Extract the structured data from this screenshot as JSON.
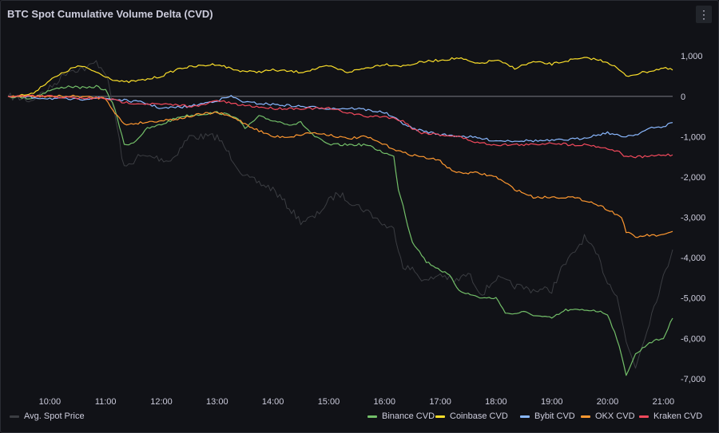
{
  "panel": {
    "title": "BTC Spot Cumulative Volume Delta (CVD)",
    "menu_icon": "kebab-menu-icon"
  },
  "chart_data": {
    "type": "line",
    "title": "BTC Spot Cumulative Volume Delta (CVD)",
    "x_ticks": [
      "10:00",
      "11:00",
      "12:00",
      "13:00",
      "14:00",
      "15:00",
      "16:00",
      "17:00",
      "18:00",
      "19:00",
      "20:00",
      "21:00"
    ],
    "xlim": [
      "09:15",
      "21:10"
    ],
    "y_ticks": [
      "1,000",
      "0",
      "-1,000",
      "-2,000",
      "-3,000",
      "-4,000",
      "-5,000",
      "-6,000",
      "-7,000"
    ],
    "ylim": [
      -7300,
      1400
    ],
    "zero_line": true,
    "legend_placement": "bottom",
    "series": [
      {
        "name": "Avg. Spot Price",
        "color": "#3b3d42",
        "axis": "none",
        "x": [
          "09:15",
          "09:40",
          "10:00",
          "10:20",
          "10:40",
          "10:50",
          "11:00",
          "11:10",
          "11:20",
          "11:35",
          "11:50",
          "12:10",
          "12:30",
          "12:50",
          "13:00",
          "13:15",
          "13:30",
          "14:00",
          "14:15",
          "14:30",
          "14:45",
          "15:00",
          "15:10",
          "15:30",
          "15:45",
          "16:00",
          "16:10",
          "16:20",
          "16:30",
          "16:45",
          "17:00",
          "17:15",
          "17:30",
          "17:45",
          "18:00",
          "18:20",
          "18:40",
          "19:00",
          "19:10",
          "19:20",
          "19:35",
          "19:50",
          "20:00",
          "20:10",
          "20:20",
          "20:30",
          "20:50",
          "21:00",
          "21:10"
        ],
        "y": [
          0,
          -100,
          200,
          650,
          700,
          850,
          600,
          -450,
          -1800,
          -1500,
          -1500,
          -1600,
          -1000,
          -1000,
          -1000,
          -1500,
          -2000,
          -2300,
          -2700,
          -3100,
          -3000,
          -2600,
          -2400,
          -2700,
          -2900,
          -3200,
          -3300,
          -4200,
          -4300,
          -4600,
          -4400,
          -4600,
          -4400,
          -4900,
          -4500,
          -4700,
          -4800,
          -4800,
          -4300,
          -4000,
          -3500,
          -4000,
          -4600,
          -4900,
          -6100,
          -6700,
          -5200,
          -4500,
          -3800
        ]
      },
      {
        "name": "Binance CVD",
        "color": "#73bf69",
        "x": [
          "09:15",
          "09:40",
          "10:00",
          "10:20",
          "10:40",
          "10:50",
          "11:00",
          "11:10",
          "11:20",
          "11:30",
          "11:45",
          "12:00",
          "12:20",
          "12:40",
          "13:00",
          "13:20",
          "13:30",
          "13:45",
          "14:00",
          "14:20",
          "14:30",
          "14:45",
          "15:00",
          "15:20",
          "15:40",
          "16:00",
          "16:10",
          "16:15",
          "16:20",
          "16:25",
          "16:30",
          "16:45",
          "17:00",
          "17:10",
          "17:20",
          "17:30",
          "17:45",
          "18:00",
          "18:10",
          "18:15",
          "18:30",
          "18:45",
          "19:00",
          "19:15",
          "19:30",
          "19:45",
          "20:00",
          "20:10",
          "20:20",
          "20:30",
          "20:45",
          "21:00",
          "21:10"
        ],
        "y": [
          0,
          -50,
          150,
          250,
          200,
          250,
          150,
          -300,
          -1200,
          -1150,
          -800,
          -700,
          -500,
          -450,
          -400,
          -500,
          -800,
          -500,
          -600,
          -700,
          -650,
          -1000,
          -1200,
          -1200,
          -1200,
          -1400,
          -1500,
          -2300,
          -2700,
          -3200,
          -3600,
          -4100,
          -4300,
          -4450,
          -4800,
          -4900,
          -5000,
          -5000,
          -5350,
          -5400,
          -5350,
          -5450,
          -5500,
          -5300,
          -5300,
          -5300,
          -5400,
          -6000,
          -6900,
          -6400,
          -6100,
          -6000,
          -5500
        ]
      },
      {
        "name": "Coinbase CVD",
        "color": "#fade2a",
        "x": [
          "09:15",
          "09:40",
          "10:00",
          "10:20",
          "10:30",
          "10:40",
          "10:50",
          "11:00",
          "11:10",
          "11:20",
          "11:40",
          "12:00",
          "12:20",
          "12:40",
          "13:00",
          "13:20",
          "13:40",
          "14:00",
          "14:30",
          "15:00",
          "15:20",
          "15:40",
          "16:00",
          "16:20",
          "16:40",
          "17:00",
          "17:20",
          "17:40",
          "18:00",
          "18:20",
          "18:40",
          "19:00",
          "19:20",
          "19:40",
          "20:00",
          "20:10",
          "20:20",
          "20:40",
          "21:00",
          "21:10"
        ],
        "y": [
          0,
          50,
          400,
          650,
          750,
          700,
          600,
          500,
          400,
          350,
          400,
          500,
          700,
          750,
          800,
          650,
          600,
          650,
          600,
          750,
          600,
          700,
          800,
          750,
          850,
          900,
          950,
          800,
          900,
          700,
          850,
          800,
          900,
          950,
          850,
          700,
          500,
          600,
          700,
          650
        ]
      },
      {
        "name": "Bybit CVD",
        "color": "#8ab8ff",
        "x": [
          "09:15",
          "10:00",
          "10:30",
          "10:45",
          "11:00",
          "11:20",
          "11:40",
          "12:00",
          "12:30",
          "13:00",
          "13:15",
          "13:30",
          "14:00",
          "14:30",
          "15:00",
          "15:30",
          "16:00",
          "16:15",
          "16:30",
          "17:00",
          "17:30",
          "18:00",
          "18:30",
          "19:00",
          "19:30",
          "20:00",
          "20:15",
          "20:30",
          "20:45",
          "21:00",
          "21:10"
        ],
        "y": [
          0,
          -50,
          -80,
          -40,
          -50,
          -100,
          -150,
          -300,
          -250,
          -100,
          0,
          -150,
          -200,
          -250,
          -300,
          -300,
          -400,
          -600,
          -800,
          -950,
          -1000,
          -1100,
          -1100,
          -1100,
          -1050,
          -900,
          -1000,
          -950,
          -800,
          -750,
          -650
        ]
      },
      {
        "name": "OKX CVD",
        "color": "#ff9830",
        "x": [
          "09:15",
          "10:00",
          "10:30",
          "11:00",
          "11:10",
          "11:20",
          "11:40",
          "12:00",
          "12:20",
          "12:40",
          "13:00",
          "13:20",
          "13:40",
          "14:00",
          "14:20",
          "14:40",
          "15:00",
          "15:20",
          "15:40",
          "16:00",
          "16:20",
          "16:40",
          "17:00",
          "17:10",
          "17:20",
          "17:40",
          "18:00",
          "18:20",
          "18:40",
          "19:00",
          "19:20",
          "19:40",
          "20:00",
          "20:15",
          "20:20",
          "20:30",
          "20:40",
          "21:00",
          "21:10"
        ],
        "y": [
          0,
          0,
          0,
          -50,
          -400,
          -700,
          -650,
          -600,
          -550,
          -450,
          -400,
          -550,
          -800,
          -1000,
          -1000,
          -900,
          -950,
          -1050,
          -1000,
          -1200,
          -1400,
          -1500,
          -1600,
          -1800,
          -1900,
          -1900,
          -2000,
          -2300,
          -2500,
          -2500,
          -2500,
          -2600,
          -2800,
          -3000,
          -3350,
          -3500,
          -3450,
          -3450,
          -3350
        ]
      },
      {
        "name": "Kraken CVD",
        "color": "#f2495c",
        "x": [
          "09:15",
          "10:00",
          "10:30",
          "11:00",
          "11:20",
          "11:40",
          "12:00",
          "12:20",
          "12:40",
          "13:00",
          "13:20",
          "13:40",
          "14:00",
          "14:20",
          "14:40",
          "15:00",
          "15:20",
          "15:40",
          "16:00",
          "16:20",
          "16:30",
          "16:40",
          "17:00",
          "17:20",
          "17:40",
          "18:00",
          "18:20",
          "18:40",
          "19:00",
          "19:20",
          "19:40",
          "20:00",
          "20:10",
          "20:20",
          "20:40",
          "21:00",
          "21:10"
        ],
        "y": [
          0,
          0,
          -50,
          -50,
          -150,
          -180,
          -200,
          -220,
          -250,
          -100,
          -200,
          -250,
          -300,
          -300,
          -300,
          -300,
          -400,
          -500,
          -500,
          -600,
          -800,
          -900,
          -950,
          -1000,
          -1150,
          -1200,
          -1200,
          -1200,
          -1150,
          -1200,
          -1200,
          -1300,
          -1350,
          -1500,
          -1500,
          -1450,
          -1450
        ]
      }
    ]
  }
}
